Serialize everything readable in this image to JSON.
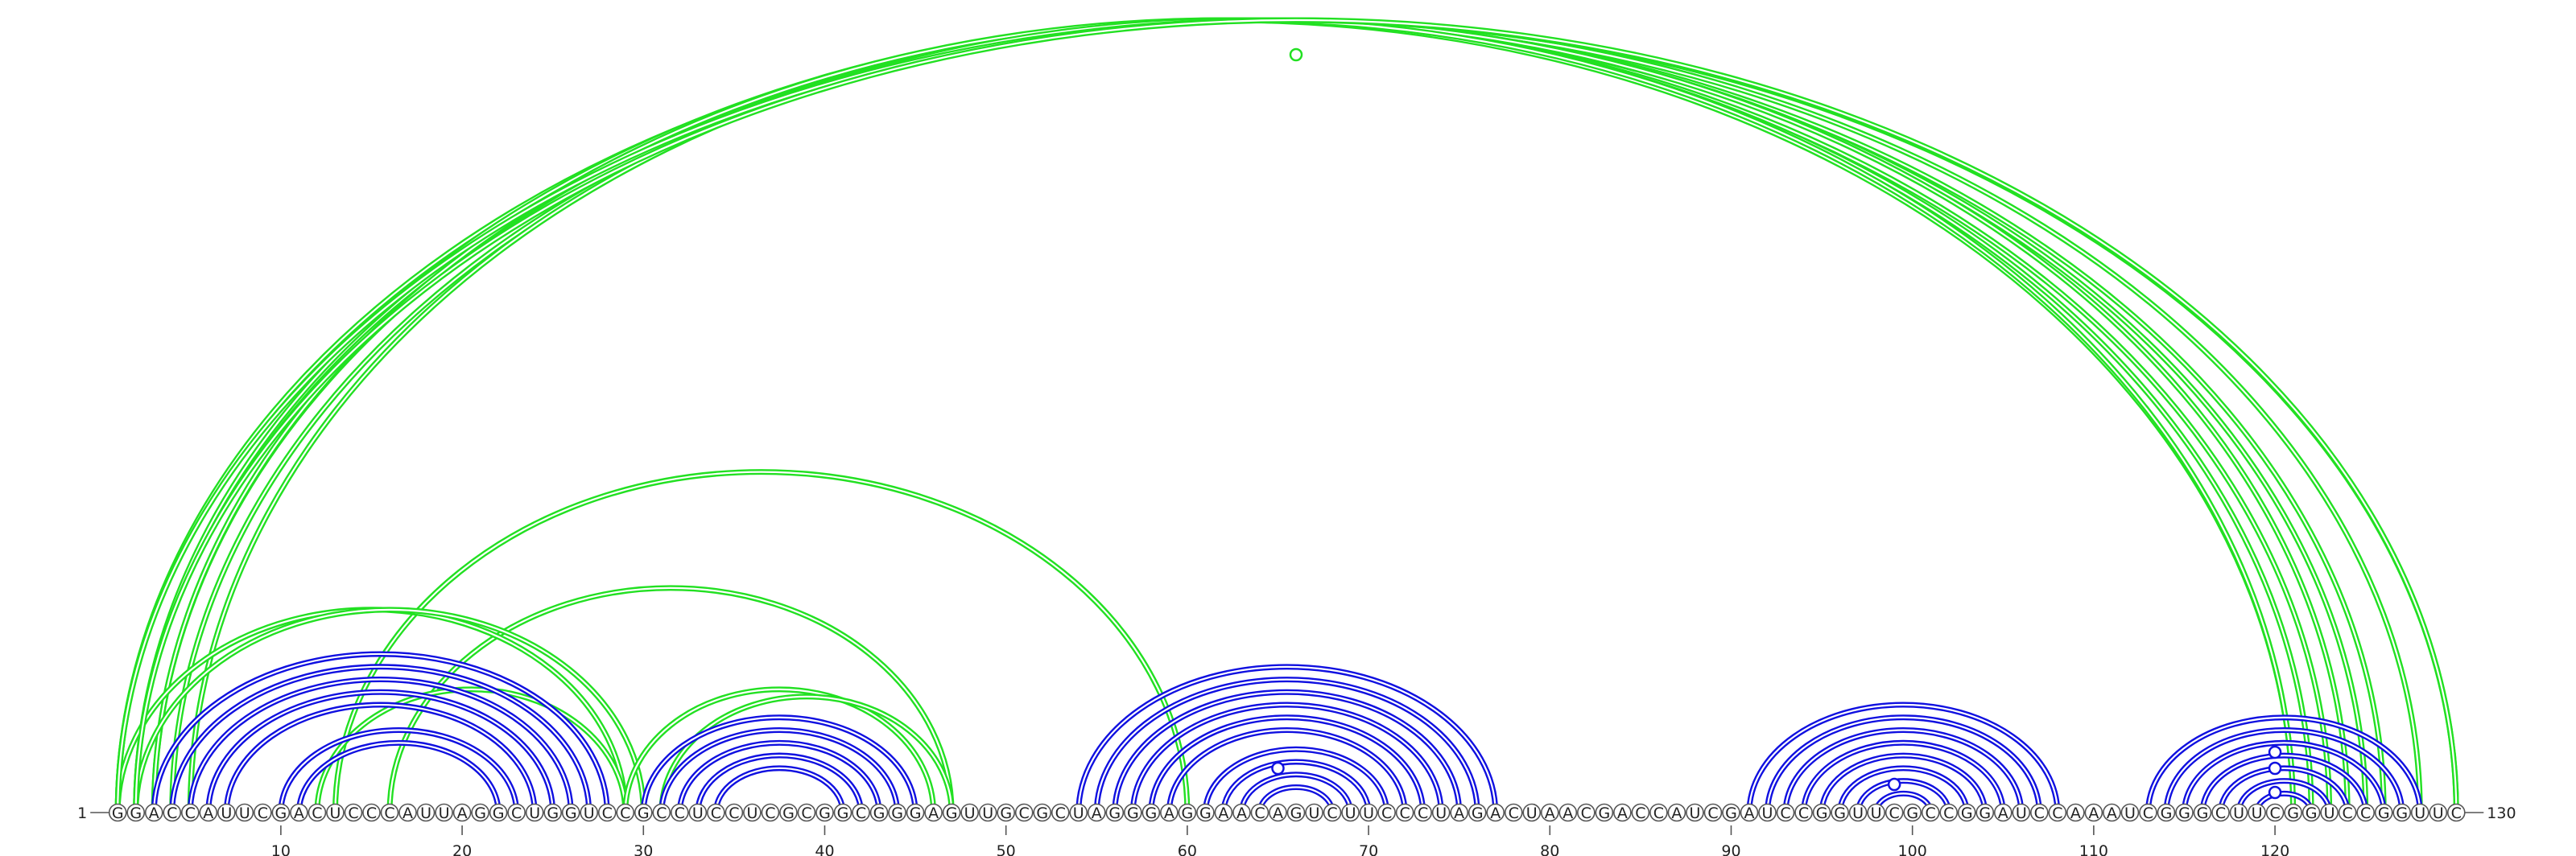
{
  "chart_data": {
    "type": "arc-diagram",
    "sequence": "GGACCAUUCGACUCCCAUUAGGCUGGUCCGCCUCCUCGCGGCGGGAGUUGCGCUAGGGAGGAACAGUCUUCCCUAGACUAACGACCAUCGAUCCGGUUCGCCGGAUCCAAAUCGGGCUUCGGUCCGGUUC",
    "start_label": "1",
    "end_label": "130",
    "ticks": [
      10,
      20,
      30,
      40,
      50,
      60,
      70,
      80,
      90,
      100,
      110,
      120
    ],
    "colors": {
      "inner_pairs": "#1010e0",
      "outer_pairs": "#22e022",
      "nucleotide_outline": "#555555"
    },
    "blue_pairs": [
      [
        3,
        28
      ],
      [
        4,
        27
      ],
      [
        5,
        26
      ],
      [
        6,
        25
      ],
      [
        7,
        24
      ],
      [
        10,
        23
      ],
      [
        11,
        22
      ],
      [
        30,
        45
      ],
      [
        31,
        44
      ],
      [
        32,
        43
      ],
      [
        33,
        42
      ],
      [
        34,
        41
      ],
      [
        54,
        77
      ],
      [
        55,
        76
      ],
      [
        56,
        75
      ],
      [
        57,
        74
      ],
      [
        58,
        73
      ],
      [
        59,
        72
      ],
      [
        61,
        71
      ],
      [
        62,
        70
      ],
      [
        63,
        69
      ],
      [
        64,
        68
      ],
      [
        91,
        108
      ],
      [
        92,
        107
      ],
      [
        93,
        106
      ],
      [
        94,
        105
      ],
      [
        95,
        104
      ],
      [
        96,
        103
      ],
      [
        97,
        102
      ],
      [
        98,
        101
      ],
      [
        113,
        128
      ],
      [
        114,
        127
      ],
      [
        115,
        126
      ],
      [
        116,
        125
      ],
      [
        117,
        124
      ],
      [
        118,
        123
      ],
      [
        119,
        122
      ]
    ],
    "green_pairs": [
      [
        1,
        128
      ],
      [
        1,
        126
      ],
      [
        2,
        125
      ],
      [
        2,
        123
      ],
      [
        3,
        122
      ],
      [
        3,
        121
      ],
      [
        4,
        124
      ],
      [
        5,
        121
      ],
      [
        13,
        60
      ],
      [
        16,
        47
      ],
      [
        1,
        29
      ],
      [
        2,
        30
      ],
      [
        12,
        29
      ],
      [
        29,
        46
      ],
      [
        31,
        47
      ],
      [
        1,
        130
      ],
      [
        2,
        130
      ]
    ],
    "blue_markers": [
      [
        65,
        -0.75
      ],
      [
        99,
        -0.55
      ],
      [
        120,
        -0.45
      ],
      [
        120,
        -0.75
      ],
      [
        120,
        -0.95
      ]
    ],
    "green_markers": [
      [
        66,
        1.05
      ]
    ]
  }
}
